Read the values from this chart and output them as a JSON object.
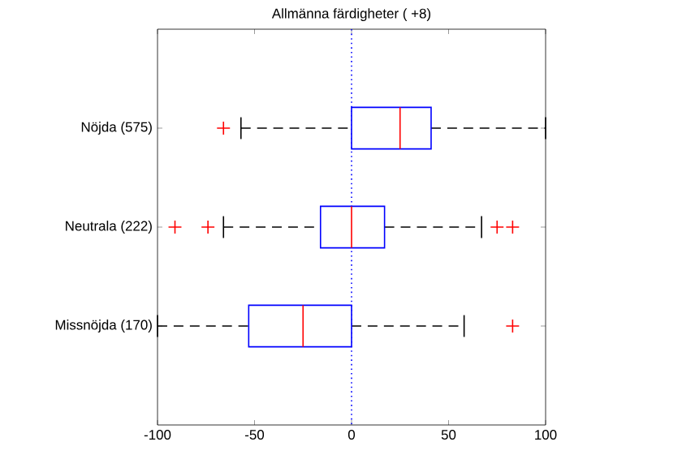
{
  "chart_data": {
    "type": "box",
    "title": "Allmänna färdigheter ( +8)",
    "orientation": "horizontal",
    "categories": [
      "Nöjda (575)",
      "Neutrala (222)",
      "Missnöjda (170)"
    ],
    "series": [
      {
        "color": "#0000ff",
        "boxes": [
          {
            "low": -57,
            "q1": 0,
            "median": 25,
            "q3": 41,
            "high": 100,
            "outliers": [
              -66
            ]
          },
          {
            "low": -66,
            "q1": -16,
            "median": 0,
            "q3": 17,
            "high": 67,
            "outliers": [
              -91,
              -74,
              75,
              83
            ]
          },
          {
            "low": -100,
            "q1": -53,
            "median": -25,
            "q3": 0,
            "high": 58,
            "outliers": [
              83
            ]
          }
        ]
      }
    ],
    "marker": "cross",
    "xlim": [
      -100,
      100
    ],
    "xticks": [
      -100,
      -50,
      0,
      50,
      100
    ],
    "ref_lines": [
      {
        "axis": "x",
        "value": 0,
        "color": "#0000ff",
        "line_style": "dotted"
      }
    ]
  }
}
